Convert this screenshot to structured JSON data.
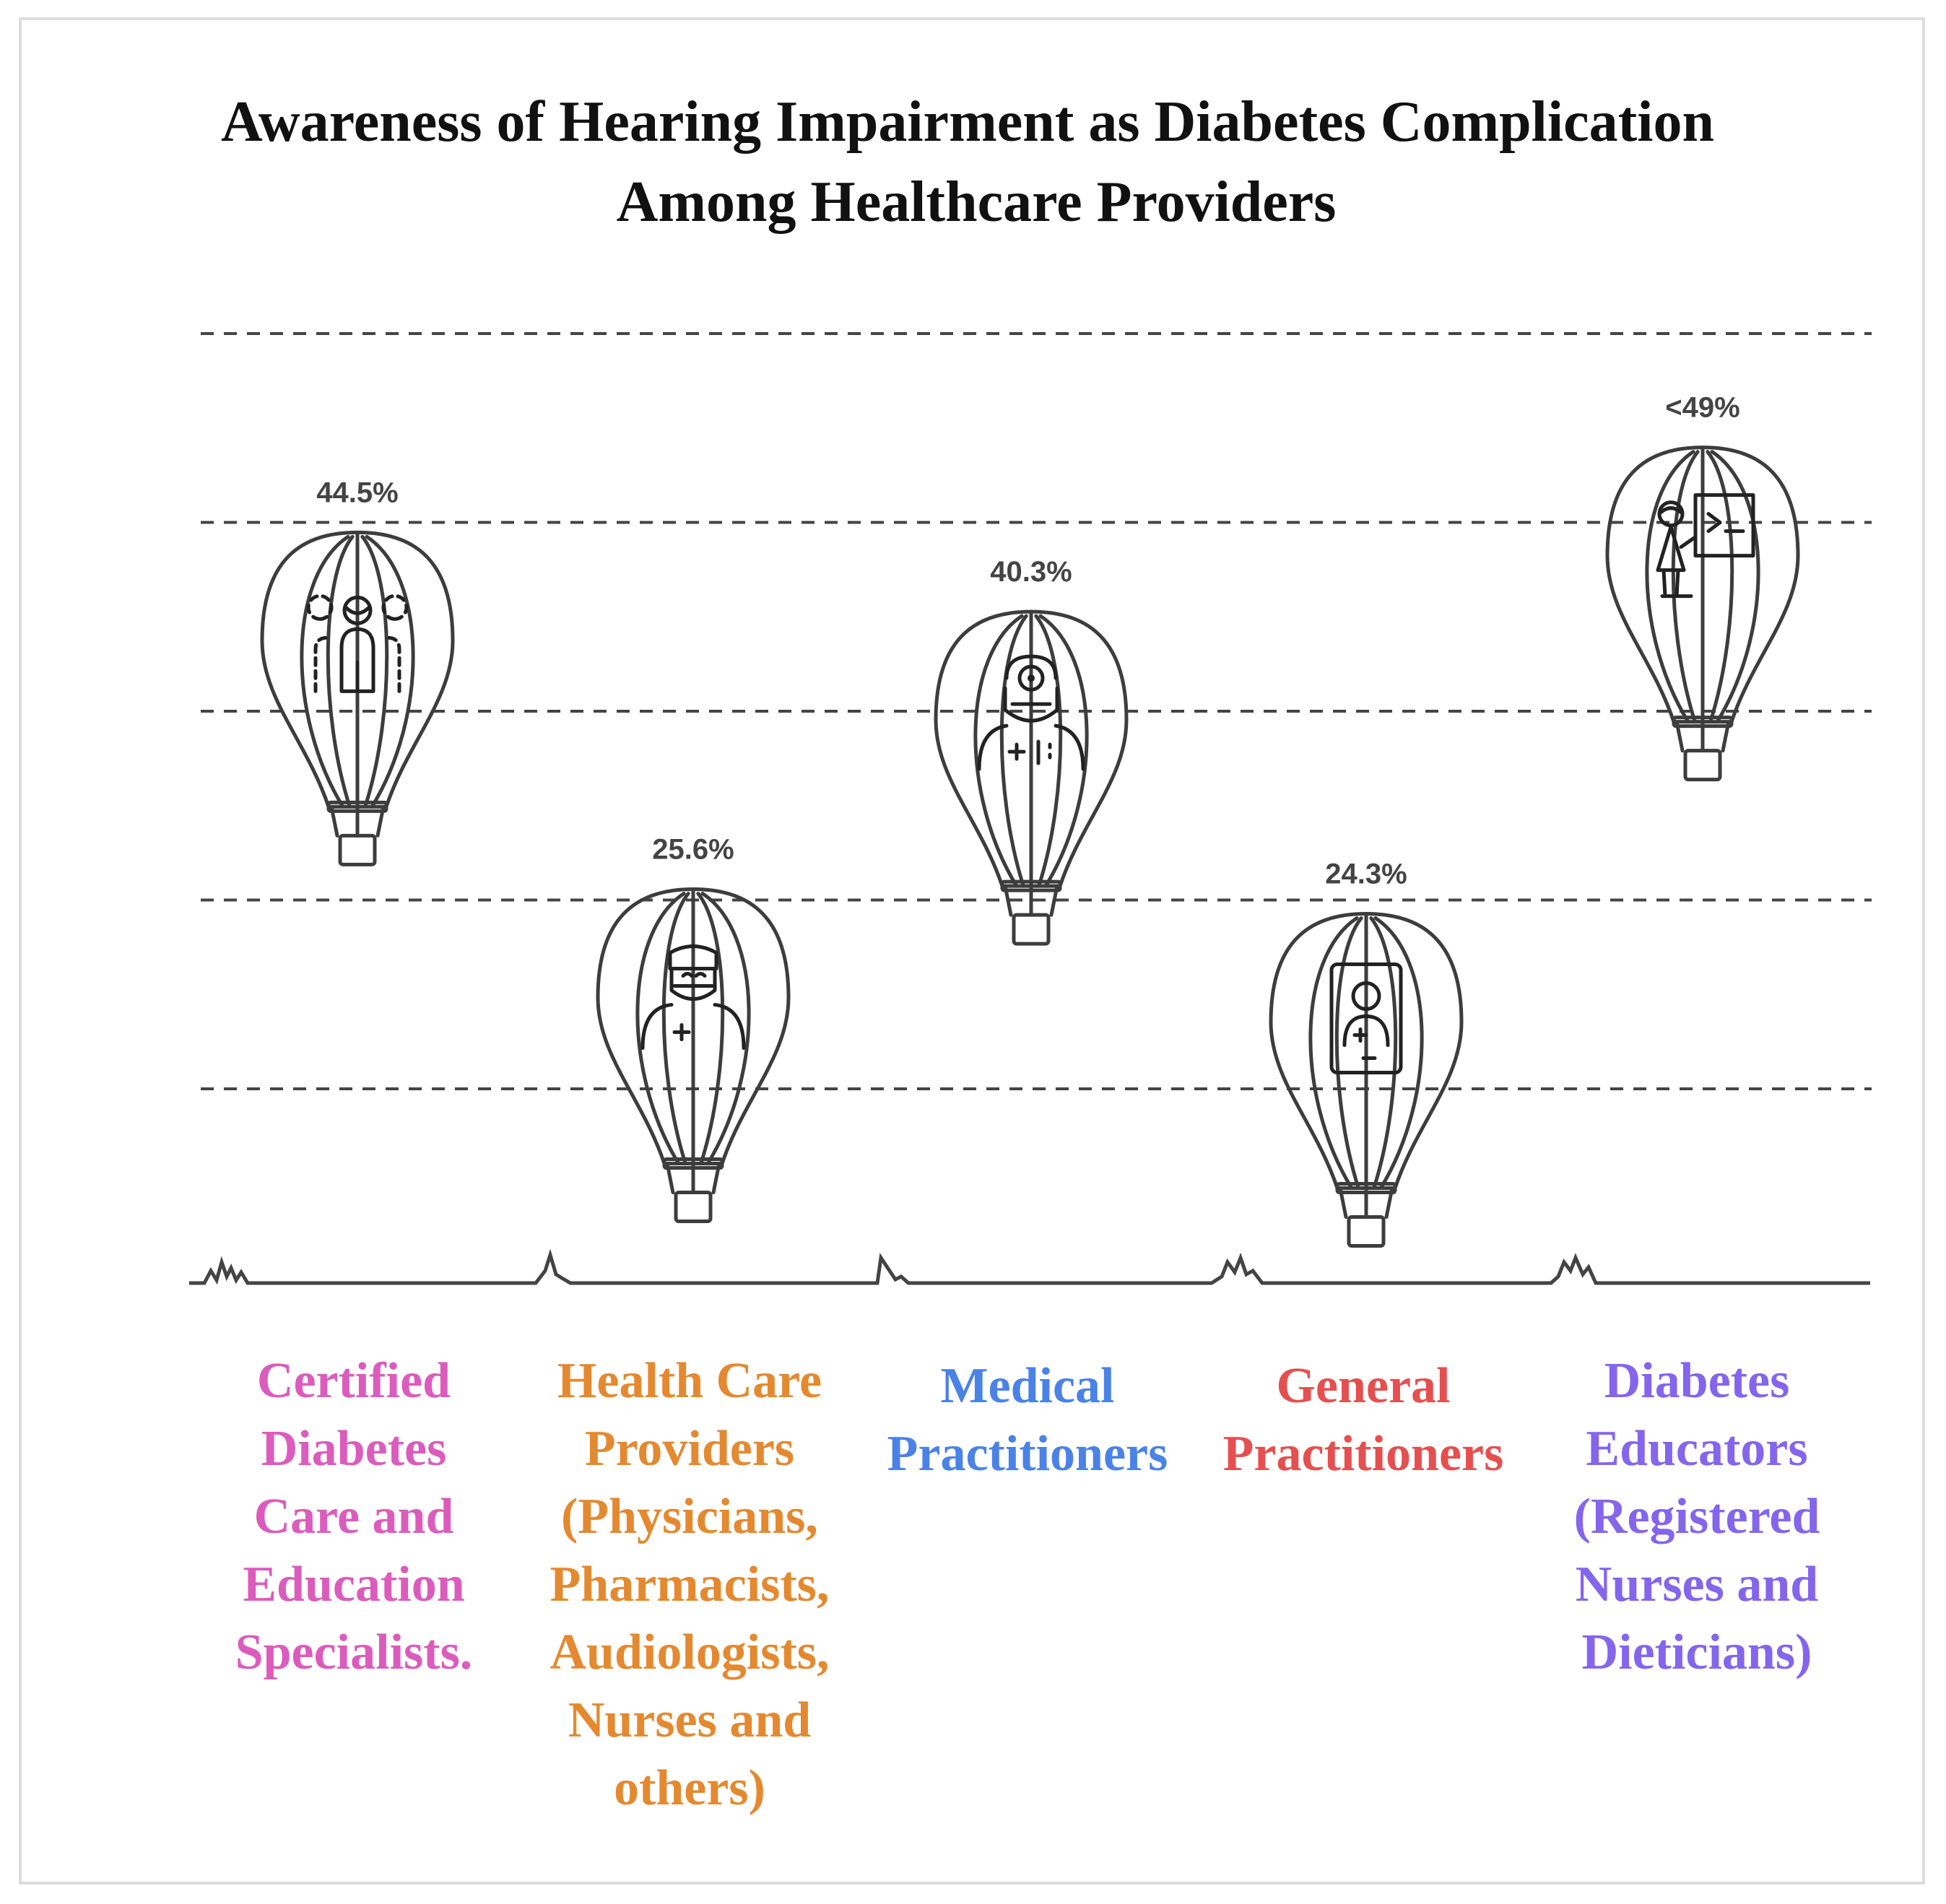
{
  "chart_data": {
    "type": "bar",
    "style": "hot-air balloons (height of balloon encodes value)",
    "title": "Awareness of Hearing Impairment as Diabetes Complication Among Healthcare Providers",
    "title_lines": [
      "Awareness of Hearing Impairment as Diabetes Complication",
      "Among Healthcare Providers"
    ],
    "xlabel": "",
    "ylabel": "",
    "grid": true,
    "ylim": [
      10,
      60
    ],
    "gridlines": [
      20,
      30,
      40,
      50,
      60
    ],
    "categories": [
      "Certified Diabetes Care and Education Specialists.",
      "Health Care Providers (Physicians, Pharmacists, Audiologists, Nurses and others)",
      "Medical Practitioners",
      "General Practitioners",
      "Diabetes Educators (Registered Nurses and Dieticians)"
    ],
    "values": [
      44.5,
      25.6,
      40.3,
      24.3,
      49
    ],
    "value_labels": [
      "44.5%",
      "25.6%",
      "40.3%",
      "24.3%",
      "<49%"
    ],
    "points": [
      {
        "category": "Certified Diabetes Care and Education Specialists.",
        "label_lines": [
          "Certified",
          "Diabetes",
          "Care and",
          "Education",
          "Specialists."
        ],
        "value": 44.5,
        "value_label": "44.5%",
        "color": "#e667c9",
        "color_light": "#f691e4",
        "label_color": "#db5cbd",
        "icon": "group-people-icon"
      },
      {
        "category": "Health Care Providers (Physicians, Pharmacists, Audiologists, Nurses and others)",
        "label_lines": [
          "Health Care",
          "Providers",
          "(Physicians,",
          "Pharmacists,",
          "Audiologists,",
          "Nurses and",
          "others)"
        ],
        "value": 25.6,
        "value_label": "25.6%",
        "color": "#f39533",
        "color_light": "#f8b15e",
        "label_color": "#e4892f",
        "icon": "surgeon-mask-icon"
      },
      {
        "category": "Medical Practitioners",
        "label_lines": [
          "Medical",
          "Practitioners"
        ],
        "value": 40.3,
        "value_label": "40.3%",
        "color": "#4d86f0",
        "color_light": "#6aa2fa",
        "label_color": "#4a82e6",
        "icon": "doctor-head-mirror-icon"
      },
      {
        "category": "General Practitioners",
        "label_lines": [
          "General",
          "Practitioners"
        ],
        "value": 24.3,
        "value_label": "24.3%",
        "color": "#f56565",
        "color_light": "#fc8888",
        "label_color": "#e54f4f",
        "icon": "medical-id-card-icon"
      },
      {
        "category": "Diabetes Educators (Registered Nurses and Dieticians)",
        "label_lines": [
          "Diabetes",
          "Educators",
          "(Registered",
          "Nurses and",
          "Dieticians)"
        ],
        "value": 49,
        "value_label": "<49%",
        "color": "#8b6cf5",
        "color_light": "#a88bfd",
        "label_color": "#8465ec",
        "icon": "teacher-board-icon"
      }
    ]
  }
}
